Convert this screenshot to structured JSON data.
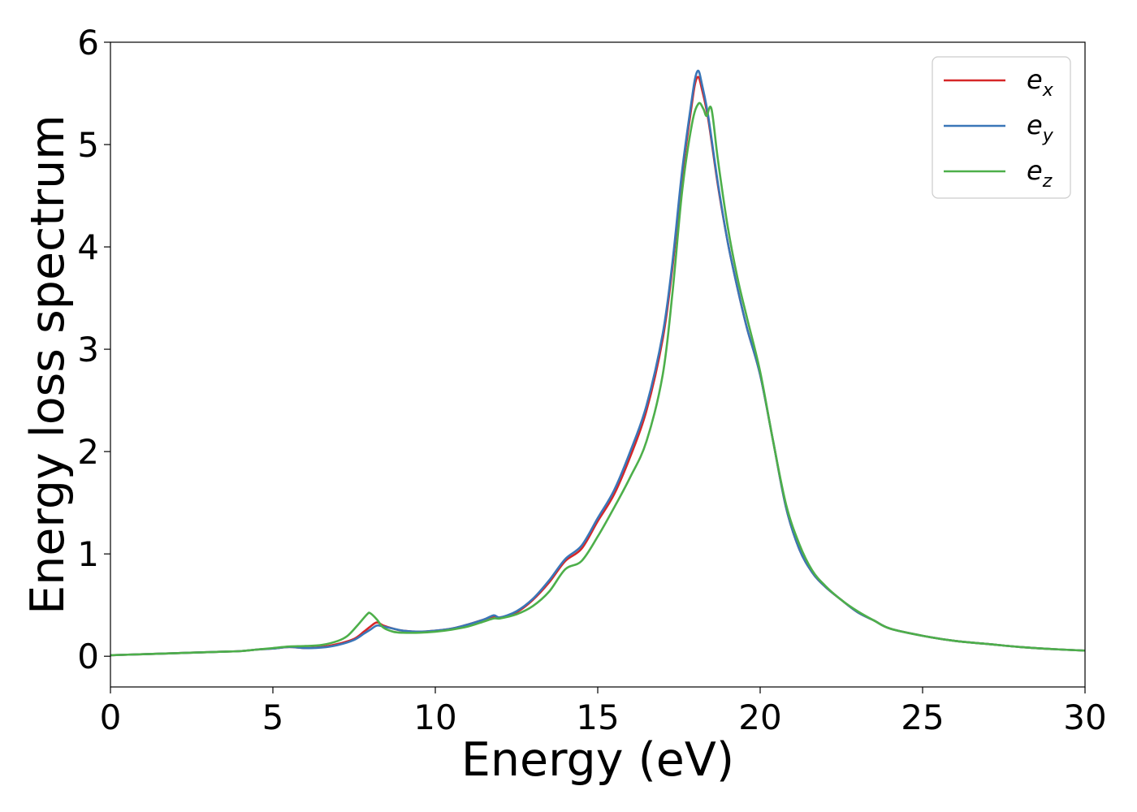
{
  "chart_data": {
    "type": "line",
    "xlabel": "Energy (eV)",
    "ylabel": "Energy loss spectrum",
    "xlim": [
      0,
      30
    ],
    "ylim": [
      -0.3,
      6
    ],
    "xticks": [
      0,
      5,
      10,
      15,
      20,
      25,
      30
    ],
    "yticks": [
      0,
      1,
      2,
      3,
      4,
      5,
      6
    ],
    "grid": false,
    "legend_position": "top-right",
    "series": [
      {
        "name": "e_x",
        "label_base": "e",
        "label_sub": "x",
        "color": "#d62728",
        "x": [
          0,
          1,
          2,
          3,
          3.5,
          4,
          4.5,
          5,
          5.5,
          6,
          6.5,
          7,
          7.5,
          7.8,
          8.0,
          8.2,
          8.4,
          8.7,
          9,
          9.5,
          10,
          10.5,
          11,
          11.5,
          11.8,
          12,
          12.5,
          13,
          13.5,
          14,
          14.5,
          15,
          15.5,
          16,
          16.5,
          17,
          17.3,
          17.6,
          17.9,
          18.0,
          18.1,
          18.2,
          18.4,
          18.7,
          19.0,
          19.3,
          19.6,
          20,
          20.4,
          20.8,
          21.2,
          21.6,
          22,
          22.5,
          23,
          23.5,
          24,
          25,
          26,
          27,
          28,
          29,
          30
        ],
        "values": [
          0.01,
          0.02,
          0.03,
          0.04,
          0.045,
          0.05,
          0.065,
          0.075,
          0.09,
          0.08,
          0.09,
          0.12,
          0.17,
          0.24,
          0.29,
          0.33,
          0.3,
          0.27,
          0.25,
          0.24,
          0.25,
          0.27,
          0.31,
          0.36,
          0.39,
          0.38,
          0.43,
          0.55,
          0.72,
          0.93,
          1.05,
          1.32,
          1.58,
          1.95,
          2.4,
          3.1,
          3.8,
          4.7,
          5.4,
          5.6,
          5.66,
          5.55,
          5.25,
          4.6,
          4.05,
          3.6,
          3.2,
          2.75,
          2.1,
          1.45,
          1.05,
          0.82,
          0.68,
          0.55,
          0.43,
          0.35,
          0.27,
          0.2,
          0.15,
          0.12,
          0.09,
          0.07,
          0.055
        ]
      },
      {
        "name": "e_y",
        "label_base": "e",
        "label_sub": "y",
        "color": "#3a76b8",
        "x": [
          0,
          1,
          2,
          3,
          3.5,
          4,
          4.5,
          5,
          5.5,
          6,
          6.5,
          7,
          7.5,
          7.8,
          8.0,
          8.2,
          8.4,
          8.7,
          9,
          9.5,
          10,
          10.5,
          11,
          11.5,
          11.8,
          12,
          12.5,
          13,
          13.5,
          14,
          14.5,
          15,
          15.5,
          16,
          16.5,
          17,
          17.3,
          17.6,
          17.9,
          18.0,
          18.1,
          18.2,
          18.4,
          18.7,
          19.0,
          19.3,
          19.6,
          20,
          20.4,
          20.8,
          21.2,
          21.6,
          22,
          22.5,
          23,
          23.5,
          24,
          25,
          26,
          27,
          28,
          29,
          30
        ],
        "values": [
          0.01,
          0.02,
          0.03,
          0.04,
          0.045,
          0.05,
          0.065,
          0.075,
          0.09,
          0.08,
          0.085,
          0.11,
          0.16,
          0.22,
          0.26,
          0.3,
          0.29,
          0.27,
          0.25,
          0.24,
          0.25,
          0.27,
          0.31,
          0.36,
          0.4,
          0.38,
          0.44,
          0.56,
          0.74,
          0.95,
          1.08,
          1.35,
          1.62,
          2.0,
          2.45,
          3.15,
          3.85,
          4.75,
          5.45,
          5.65,
          5.72,
          5.6,
          5.28,
          4.62,
          4.05,
          3.6,
          3.2,
          2.75,
          2.1,
          1.45,
          1.05,
          0.82,
          0.68,
          0.55,
          0.43,
          0.35,
          0.27,
          0.2,
          0.15,
          0.12,
          0.09,
          0.07,
          0.055
        ]
      },
      {
        "name": "e_z",
        "label_base": "e",
        "label_sub": "z",
        "color": "#4daf4a",
        "x": [
          0,
          1,
          2,
          3,
          3.5,
          4,
          4.5,
          5,
          5.5,
          6,
          6.5,
          7,
          7.3,
          7.6,
          7.9,
          8.0,
          8.2,
          8.4,
          8.7,
          9,
          9.5,
          10,
          10.5,
          11,
          11.5,
          11.8,
          12,
          12.5,
          13,
          13.5,
          14,
          14.5,
          15,
          15.5,
          16,
          16.5,
          17,
          17.3,
          17.6,
          17.9,
          18.1,
          18.25,
          18.35,
          18.5,
          18.7,
          19.0,
          19.3,
          19.6,
          20,
          20.4,
          20.8,
          21.2,
          21.6,
          22,
          22.5,
          23,
          23.5,
          24,
          25,
          26,
          27,
          28,
          29,
          30
        ],
        "values": [
          0.01,
          0.02,
          0.03,
          0.04,
          0.045,
          0.05,
          0.065,
          0.08,
          0.095,
          0.1,
          0.11,
          0.15,
          0.2,
          0.3,
          0.41,
          0.42,
          0.36,
          0.28,
          0.24,
          0.23,
          0.23,
          0.24,
          0.26,
          0.29,
          0.34,
          0.37,
          0.37,
          0.41,
          0.49,
          0.63,
          0.85,
          0.93,
          1.17,
          1.45,
          1.75,
          2.1,
          2.75,
          3.55,
          4.55,
          5.2,
          5.4,
          5.35,
          5.28,
          5.35,
          4.85,
          4.2,
          3.7,
          3.3,
          2.78,
          2.1,
          1.48,
          1.1,
          0.84,
          0.69,
          0.55,
          0.44,
          0.35,
          0.27,
          0.2,
          0.15,
          0.12,
          0.09,
          0.07,
          0.055
        ]
      }
    ]
  }
}
